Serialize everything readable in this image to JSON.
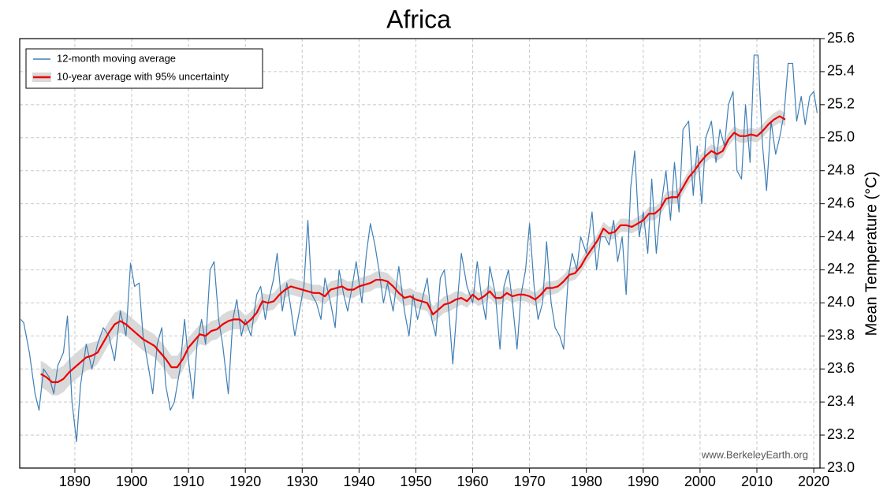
{
  "chart_data": {
    "type": "line",
    "title": "Africa",
    "y_label": "Mean Temperature (°C)",
    "watermark": "www.BerkeleyEarth.org",
    "xlim": [
      1880.3,
      2021.1
    ],
    "ylim": [
      23.0,
      25.6
    ],
    "xticks": [
      1890,
      1900,
      1910,
      1920,
      1930,
      1940,
      1950,
      1960,
      1970,
      1980,
      1990,
      2000,
      2010,
      2020
    ],
    "yticks": [
      {
        "value": 23,
        "label": "23.0"
      },
      23.2,
      23.4,
      23.6,
      23.8,
      {
        "value": 24,
        "label": "24.0"
      },
      24.2,
      24.4,
      24.6,
      24.8,
      {
        "value": 25,
        "label": "25.0"
      },
      25.2,
      25.4,
      25.6
    ],
    "grid": true,
    "legend": "upper left",
    "series": [
      {
        "name": "12-month moving average",
        "color": "#3f7fb5",
        "x": [
          1880.5,
          1881,
          1882,
          1883,
          1883.7,
          1884.5,
          1885.5,
          1886.3,
          1887,
          1888,
          1888.7,
          1889.5,
          1890.3,
          1891,
          1892,
          1893,
          1894,
          1895,
          1896,
          1897,
          1898,
          1899,
          1899.8,
          1900.5,
          1901.3,
          1902,
          1903,
          1903.7,
          1904.5,
          1905.3,
          1906,
          1906.8,
          1907.5,
          1908.5,
          1909.3,
          1910,
          1910.8,
          1911.5,
          1912.3,
          1913,
          1913.8,
          1914.5,
          1915.3,
          1916,
          1917,
          1917.8,
          1918.5,
          1919.3,
          1920,
          1921,
          1922,
          1922.7,
          1923.5,
          1924,
          1925,
          1925.6,
          1926.5,
          1927.3,
          1928,
          1928.7,
          1929.5,
          1930.3,
          1931,
          1931.7,
          1932.5,
          1933.3,
          1934,
          1935,
          1935.8,
          1936.5,
          1937.3,
          1938,
          1938.8,
          1939.5,
          1940.5,
          1941.3,
          1942,
          1942.8,
          1943.5,
          1944.3,
          1945,
          1946,
          1947,
          1948,
          1948.8,
          1949.5,
          1950.3,
          1951,
          1952,
          1952.8,
          1953.5,
          1954.3,
          1955,
          1955.8,
          1956.5,
          1957.3,
          1958,
          1959,
          1960,
          1960.8,
          1961.5,
          1962.3,
          1963,
          1964,
          1964.8,
          1965.5,
          1966.3,
          1967,
          1967.8,
          1968.5,
          1969.3,
          1970,
          1970.8,
          1971.5,
          1972.3,
          1973,
          1973.8,
          1974.5,
          1975.3,
          1976,
          1976.8,
          1977.5,
          1978.3,
          1979,
          1980,
          1981,
          1981.8,
          1982.5,
          1983.3,
          1984,
          1984.8,
          1985.5,
          1986.3,
          1987,
          1987.8,
          1988.5,
          1989.3,
          1990,
          1990.8,
          1991.5,
          1992.3,
          1993,
          1994,
          1994.8,
          1995.5,
          1996.3,
          1997,
          1998,
          1998.8,
          1999.5,
          2000.3,
          2001,
          2002,
          2002.8,
          2003.5,
          2004.3,
          2005,
          2005.8,
          2006.5,
          2007.3,
          2008,
          2008.8,
          2009.5,
          2010.2,
          2011,
          2011.7,
          2012.5,
          2013.3,
          2014,
          2014.8,
          2015.5,
          2016.3,
          2017,
          2017.8,
          2018.5,
          2019.3,
          2020,
          2020.6
        ],
        "values": [
          23.9,
          23.88,
          23.7,
          23.45,
          23.35,
          23.6,
          23.55,
          23.45,
          23.62,
          23.7,
          23.92,
          23.4,
          23.16,
          23.5,
          23.75,
          23.6,
          23.75,
          23.85,
          23.8,
          23.65,
          23.95,
          23.8,
          24.24,
          24.1,
          24.12,
          23.8,
          23.6,
          23.45,
          23.75,
          23.85,
          23.5,
          23.35,
          23.4,
          23.6,
          23.9,
          23.65,
          23.42,
          23.75,
          23.9,
          23.75,
          24.2,
          24.25,
          23.9,
          23.75,
          23.45,
          23.9,
          24.02,
          23.8,
          23.9,
          23.8,
          24.05,
          24.1,
          23.9,
          24.0,
          24.15,
          24.3,
          23.95,
          24.12,
          23.97,
          23.8,
          23.95,
          24.1,
          24.5,
          24.05,
          24.0,
          23.9,
          24.15,
          24.0,
          23.85,
          24.2,
          24.05,
          23.95,
          24.1,
          24.25,
          24.0,
          24.3,
          24.48,
          24.35,
          24.2,
          24.0,
          24.12,
          23.95,
          24.22,
          23.95,
          23.8,
          24.05,
          23.9,
          24.0,
          24.15,
          23.9,
          23.8,
          24.15,
          24.2,
          23.95,
          23.63,
          24.0,
          24.3,
          24.1,
          24.0,
          24.25,
          24.05,
          23.9,
          24.22,
          24.05,
          23.72,
          24.1,
          24.2,
          24.0,
          23.72,
          24.05,
          24.2,
          24.48,
          24.1,
          23.9,
          24.0,
          24.37,
          24.0,
          23.85,
          23.8,
          23.72,
          24.15,
          24.3,
          24.2,
          24.4,
          24.3,
          24.55,
          24.2,
          24.4,
          24.4,
          24.35,
          24.5,
          24.25,
          24.4,
          24.05,
          24.7,
          24.92,
          24.4,
          24.55,
          24.3,
          24.75,
          24.3,
          24.55,
          24.8,
          24.5,
          24.85,
          24.55,
          25.05,
          25.1,
          24.65,
          24.95,
          24.6,
          25.0,
          25.1,
          24.85,
          25.05,
          24.95,
          25.2,
          25.28,
          24.8,
          24.75,
          25.2,
          24.85,
          25.5,
          25.5,
          24.95,
          24.68,
          25.1,
          24.9,
          25.0,
          25.15,
          25.45,
          25.45,
          25.1,
          25.25,
          25.08,
          25.25,
          25.28,
          25.15
        ]
      },
      {
        "name": "10-year average with 95% uncertainty",
        "color": "#ee0000",
        "band_color": "#d9d9d9",
        "x": [
          1884,
          1885,
          1886,
          1887,
          1888,
          1889,
          1890,
          1891,
          1892,
          1893,
          1894,
          1895,
          1896,
          1897,
          1898,
          1899,
          1900,
          1901,
          1902,
          1903,
          1904,
          1905,
          1906,
          1907,
          1908,
          1909,
          1910,
          1911,
          1912,
          1913,
          1914,
          1915,
          1916,
          1917,
          1918,
          1919,
          1920,
          1921,
          1922,
          1923,
          1924,
          1925,
          1926,
          1927,
          1928,
          1929,
          1930,
          1931,
          1932,
          1933,
          1934,
          1935,
          1936,
          1937,
          1938,
          1939,
          1940,
          1941,
          1942,
          1943,
          1944,
          1945,
          1946,
          1947,
          1948,
          1949,
          1950,
          1951,
          1952,
          1953,
          1954,
          1955,
          1956,
          1957,
          1958,
          1959,
          1960,
          1961,
          1962,
          1963,
          1964,
          1965,
          1966,
          1967,
          1968,
          1969,
          1970,
          1971,
          1972,
          1973,
          1974,
          1975,
          1976,
          1977,
          1978,
          1979,
          1980,
          1981,
          1982,
          1983,
          1984,
          1985,
          1986,
          1987,
          1988,
          1989,
          1990,
          1991,
          1992,
          1993,
          1994,
          1995,
          1996,
          1997,
          1998,
          1999,
          2000,
          2001,
          2002,
          2003,
          2004,
          2005,
          2006,
          2007,
          2008,
          2009,
          2010,
          2011,
          2012,
          2013,
          2014,
          2015
        ],
        "values": [
          23.57,
          23.55,
          23.52,
          23.52,
          23.54,
          23.58,
          23.61,
          23.64,
          23.67,
          23.68,
          23.7,
          23.76,
          23.82,
          23.87,
          23.89,
          23.87,
          23.84,
          23.81,
          23.78,
          23.76,
          23.74,
          23.7,
          23.66,
          23.61,
          23.61,
          23.66,
          23.73,
          23.77,
          23.81,
          23.8,
          23.83,
          23.84,
          23.87,
          23.89,
          23.9,
          23.9,
          23.87,
          23.9,
          23.94,
          24.01,
          24.0,
          24.01,
          24.05,
          24.08,
          24.1,
          24.09,
          24.08,
          24.07,
          24.06,
          24.06,
          24.04,
          24.08,
          24.09,
          24.1,
          24.08,
          24.08,
          24.1,
          24.11,
          24.12,
          24.14,
          24.14,
          24.13,
          24.1,
          24.06,
          24.03,
          24.04,
          24.02,
          24.01,
          24.0,
          23.93,
          23.96,
          23.99,
          24.0,
          24.02,
          24.03,
          24.01,
          24.05,
          24.02,
          24.04,
          24.07,
          24.03,
          24.03,
          24.06,
          24.04,
          24.05,
          24.05,
          24.04,
          24.02,
          24.05,
          24.09,
          24.09,
          24.1,
          24.13,
          24.17,
          24.18,
          24.22,
          24.28,
          24.33,
          24.38,
          24.45,
          24.42,
          24.43,
          24.47,
          24.47,
          24.46,
          24.48,
          24.5,
          24.54,
          24.54,
          24.57,
          24.63,
          24.64,
          24.64,
          24.7,
          24.76,
          24.8,
          24.85,
          24.89,
          24.92,
          24.9,
          24.92,
          24.99,
          25.03,
          25.01,
          25.01,
          25.02,
          25.01,
          25.04,
          25.08,
          25.11,
          25.13,
          25.11
        ],
        "uncertainty": [
          0.08,
          0.08,
          0.08,
          0.08,
          0.08,
          0.08,
          0.08,
          0.08,
          0.08,
          0.08,
          0.07,
          0.07,
          0.07,
          0.07,
          0.07,
          0.07,
          0.07,
          0.07,
          0.07,
          0.07,
          0.07,
          0.07,
          0.07,
          0.07,
          0.07,
          0.07,
          0.06,
          0.06,
          0.06,
          0.06,
          0.06,
          0.06,
          0.06,
          0.06,
          0.06,
          0.06,
          0.05,
          0.05,
          0.05,
          0.05,
          0.05,
          0.05,
          0.05,
          0.05,
          0.05,
          0.05,
          0.05,
          0.05,
          0.05,
          0.05,
          0.05,
          0.05,
          0.05,
          0.05,
          0.05,
          0.05,
          0.05,
          0.05,
          0.05,
          0.05,
          0.05,
          0.05,
          0.05,
          0.05,
          0.05,
          0.05,
          0.05,
          0.05,
          0.05,
          0.05,
          0.05,
          0.05,
          0.05,
          0.05,
          0.04,
          0.04,
          0.04,
          0.04,
          0.04,
          0.04,
          0.04,
          0.04,
          0.04,
          0.04,
          0.04,
          0.04,
          0.04,
          0.04,
          0.04,
          0.04,
          0.04,
          0.04,
          0.04,
          0.04,
          0.04,
          0.04,
          0.04,
          0.04,
          0.04,
          0.04,
          0.04,
          0.04,
          0.04,
          0.04,
          0.04,
          0.04,
          0.04,
          0.04,
          0.04,
          0.04,
          0.04,
          0.04,
          0.04,
          0.04,
          0.04,
          0.04,
          0.04,
          0.04,
          0.04,
          0.04,
          0.04,
          0.04,
          0.04,
          0.04,
          0.04,
          0.04,
          0.04,
          0.04,
          0.04,
          0.04,
          0.04,
          0.04
        ]
      }
    ]
  }
}
